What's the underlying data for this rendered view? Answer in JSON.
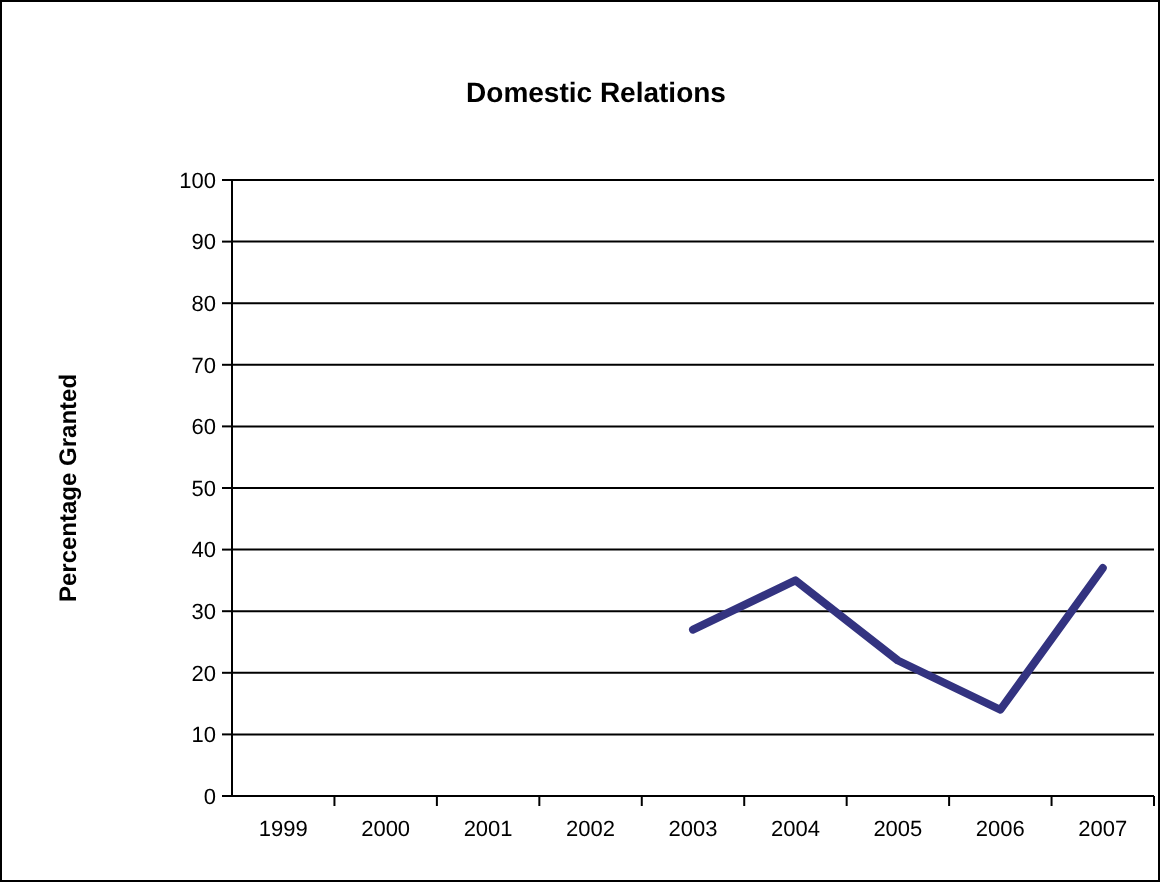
{
  "chart_data": {
    "type": "line",
    "title": "Domestic Relations",
    "ylabel": "Percentage Granted",
    "categories": [
      "1999",
      "2000",
      "2001",
      "2002",
      "2003",
      "2004",
      "2005",
      "2006",
      "2007"
    ],
    "series": [
      {
        "color": "#333380",
        "values": [
          null,
          null,
          null,
          null,
          27,
          35,
          22,
          14,
          37
        ]
      }
    ],
    "ylim": [
      0,
      100
    ],
    "yticks": [
      0,
      10,
      20,
      30,
      40,
      50,
      60,
      70,
      80,
      90,
      100
    ],
    "grid": "y",
    "marker": "none",
    "line_style": "solid"
  }
}
